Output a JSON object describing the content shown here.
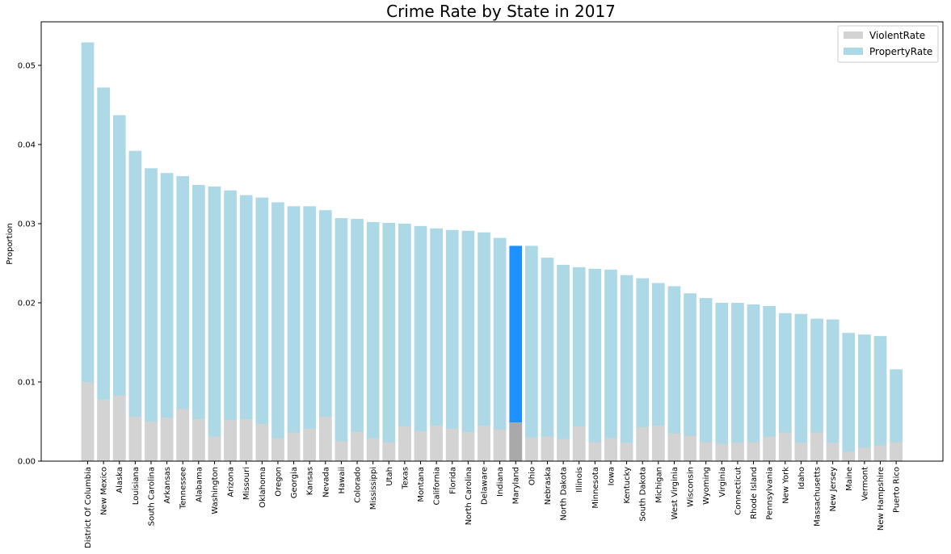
{
  "chart_data": {
    "type": "bar",
    "title": "Crime Rate by State in 2017",
    "xlabel": "",
    "ylabel": "Proportion",
    "ylim": [
      0,
      0.0555
    ],
    "yticks": [
      0.0,
      0.01,
      0.02,
      0.03,
      0.04,
      0.05
    ],
    "ytick_labels": [
      "0.00",
      "0.01",
      "0.02",
      "0.03",
      "0.04",
      "0.05"
    ],
    "stacked": false,
    "grid": false,
    "legend_position": "top-right",
    "highlight_category": "Maryland",
    "categories": [
      "District Of Columbia",
      "New Mexico",
      "Alaska",
      "Louisiana",
      "South Carolina",
      "Arkansas",
      "Tennessee",
      "Alabama",
      "Washington",
      "Arizona",
      "Missouri",
      "Oklahoma",
      "Oregon",
      "Georgia",
      "Kansas",
      "Nevada",
      "Hawaii",
      "Colorado",
      "Mississippi",
      "Utah",
      "Texas",
      "Montana",
      "California",
      "Florida",
      "North Carolina",
      "Delaware",
      "Indiana",
      "Maryland",
      "Ohio",
      "Nebraska",
      "North Dakota",
      "Illinois",
      "Minnesota",
      "Iowa",
      "Kentucky",
      "South Dakota",
      "Michigan",
      "West Virginia",
      "Wisconsin",
      "Wyoming",
      "Virginia",
      "Connecticut",
      "Rhode Island",
      "Pennsylvania",
      "New York",
      "Idaho",
      "Massachusetts",
      "New Jersey",
      "Maine",
      "Vermont",
      "New Hampshire",
      "Puerto Rico"
    ],
    "series": [
      {
        "name": "PropertyRate",
        "color": "#add8e6",
        "highlight_color": "#1e90ff",
        "values": [
          0.0529,
          0.0472,
          0.0437,
          0.0392,
          0.037,
          0.0364,
          0.036,
          0.0349,
          0.0347,
          0.0342,
          0.0336,
          0.0333,
          0.0327,
          0.0322,
          0.0322,
          0.0317,
          0.0307,
          0.0306,
          0.0302,
          0.0301,
          0.03,
          0.0297,
          0.0294,
          0.0292,
          0.0291,
          0.0289,
          0.0282,
          0.0272,
          0.0272,
          0.0257,
          0.0248,
          0.0245,
          0.0243,
          0.0242,
          0.0235,
          0.0231,
          0.0225,
          0.0221,
          0.0212,
          0.0206,
          0.02,
          0.02,
          0.0198,
          0.0196,
          0.0187,
          0.0186,
          0.018,
          0.0179,
          0.0162,
          0.016,
          0.0158,
          0.0116
        ]
      },
      {
        "name": "ViolentRate",
        "color": "#d3d3d3",
        "highlight_color": "#a9a9a9",
        "values": [
          0.01,
          0.0078,
          0.0083,
          0.0056,
          0.005,
          0.0055,
          0.0066,
          0.0053,
          0.0031,
          0.0052,
          0.0053,
          0.0047,
          0.0029,
          0.0036,
          0.0041,
          0.0056,
          0.0025,
          0.0037,
          0.0029,
          0.0024,
          0.0044,
          0.0038,
          0.0045,
          0.0041,
          0.0037,
          0.0045,
          0.004,
          0.0049,
          0.003,
          0.0031,
          0.0028,
          0.0044,
          0.0024,
          0.0029,
          0.0023,
          0.0043,
          0.0045,
          0.0035,
          0.0032,
          0.0024,
          0.0022,
          0.0023,
          0.0024,
          0.0031,
          0.0036,
          0.0023,
          0.0036,
          0.0023,
          0.0012,
          0.0017,
          0.002,
          0.0024
        ]
      }
    ],
    "legend": [
      "ViolentRate",
      "PropertyRate"
    ]
  }
}
